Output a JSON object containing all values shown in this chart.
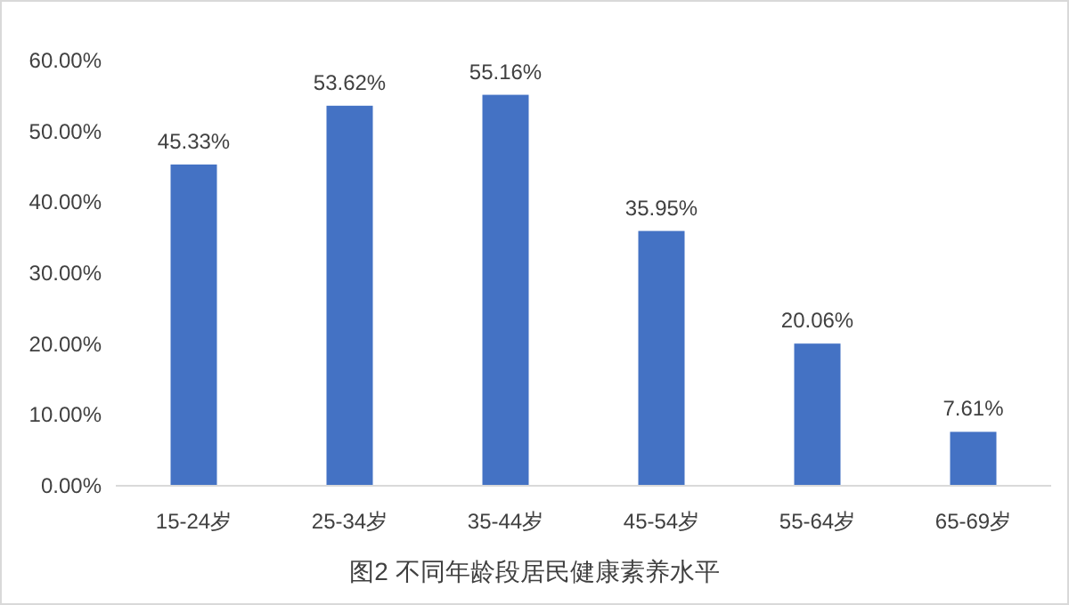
{
  "chart_data": {
    "type": "bar",
    "title": "图2  不同年龄段居民健康素养水平",
    "categories": [
      "15-24岁",
      "25-34岁",
      "35-44岁",
      "45-54岁",
      "55-64岁",
      "65-69岁"
    ],
    "values": [
      45.33,
      53.62,
      55.16,
      35.95,
      20.06,
      7.61
    ],
    "value_labels": [
      "45.33%",
      "53.62%",
      "55.16%",
      "35.95%",
      "20.06%",
      "7.61%"
    ],
    "color": "#4472c4",
    "ylim": [
      0,
      60
    ],
    "yticks": [
      {
        "value": 0,
        "label": "0.00%"
      },
      {
        "value": 10,
        "label": "10.00%"
      },
      {
        "value": 20,
        "label": "20.00%"
      },
      {
        "value": 30,
        "label": "30.00%"
      },
      {
        "value": 40,
        "label": "40.00%"
      },
      {
        "value": 50,
        "label": "50.00%"
      },
      {
        "value": 60,
        "label": "60.00%"
      }
    ],
    "grid": false
  }
}
